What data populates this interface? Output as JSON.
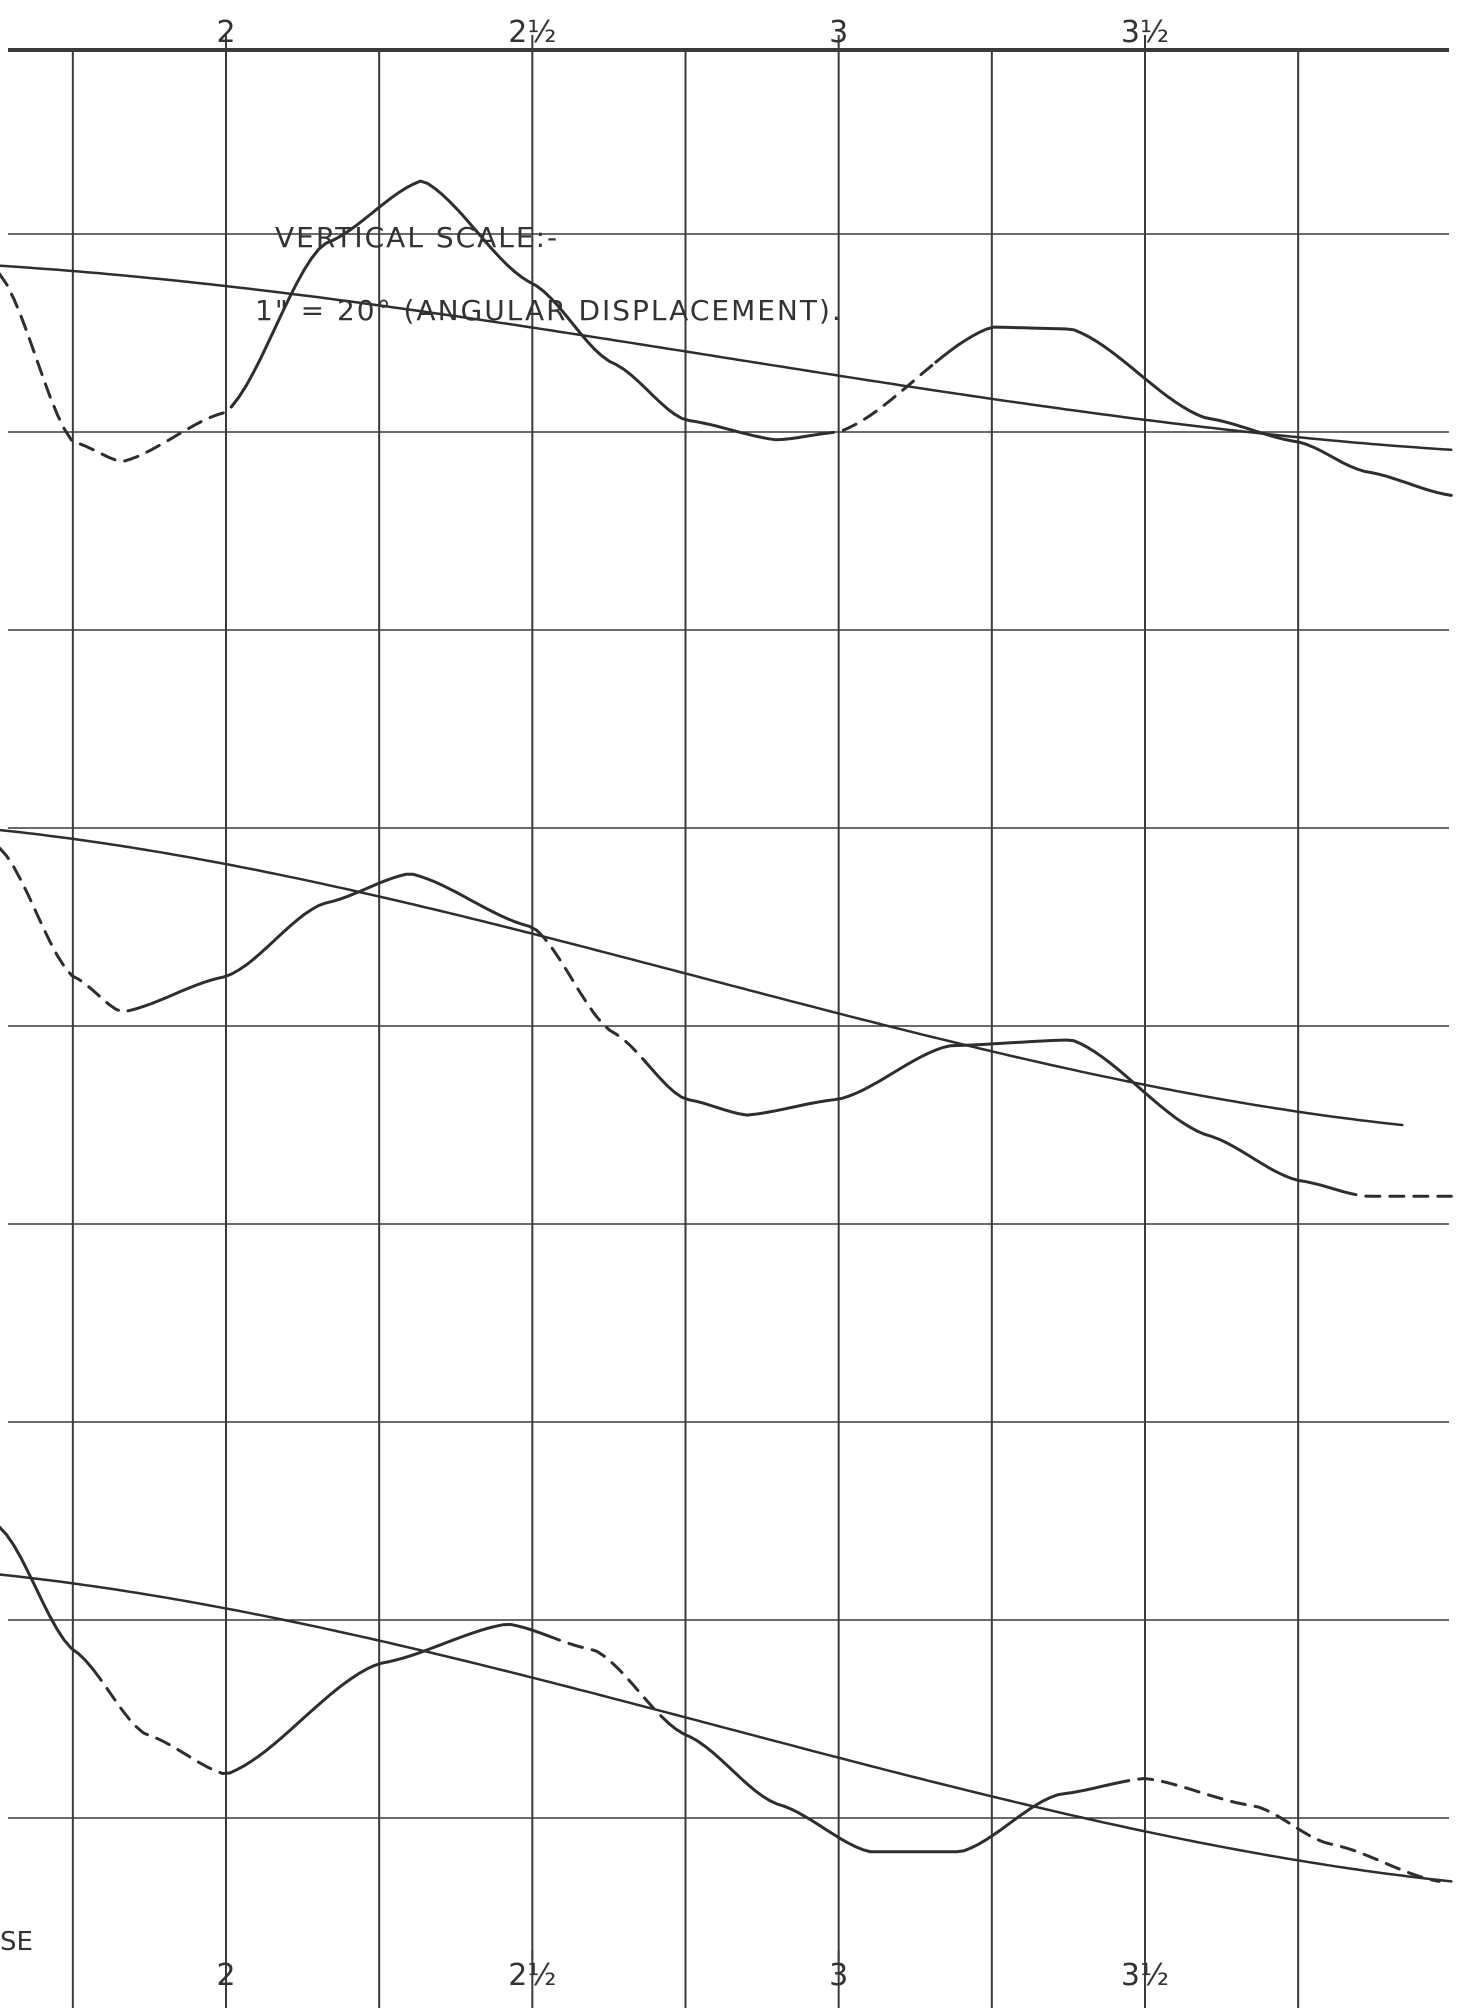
{
  "chart_data": {
    "type": "line",
    "title": "",
    "xlabel": "",
    "ylabel": "",
    "annotation_lines": [
      "VERTICAL SCALE:-",
      "1\" = 20° (ANGULAR DISPLACEMENT)."
    ],
    "bottom_left_label": "SE",
    "x_ticks": [
      {
        "value": 2.0,
        "label": "2"
      },
      {
        "value": 2.5,
        "label": "2½"
      },
      {
        "value": 3.0,
        "label": "3"
      },
      {
        "value": 3.5,
        "label": "3½"
      }
    ],
    "xlim": [
      1.63,
      4.0
    ],
    "ylim": [
      -1.0,
      9.0
    ],
    "grid": true,
    "grid_x": [
      1.75,
      2.0,
      2.25,
      2.5,
      2.75,
      3.0,
      3.25,
      3.5,
      3.75
    ],
    "grid_y": [
      0,
      1,
      2,
      3,
      4,
      5,
      6,
      7,
      8
    ],
    "series": [
      {
        "style": "oscillation",
        "x": [
          1.63,
          1.75,
          1.83,
          2.0,
          2.16,
          2.32,
          2.5,
          2.63,
          2.75,
          2.9,
          3.0,
          3.25,
          3.38,
          3.6,
          3.75,
          3.86,
          4.0
        ],
        "y": [
          7.8,
          6.95,
          6.85,
          7.1,
          7.95,
          8.27,
          7.75,
          7.35,
          7.06,
          6.96,
          7.0,
          7.53,
          7.52,
          7.07,
          6.95,
          6.8,
          6.68
        ],
        "dashed_x_ranges": [
          [
            1.63,
            2.0
          ],
          [
            2.96,
            3.15
          ]
        ]
      },
      {
        "style": "mean_line",
        "x": [
          1.63,
          4.0
        ],
        "y": [
          7.84,
          6.91
        ],
        "dashed_x_ranges": []
      },
      {
        "style": "oscillation",
        "x": [
          1.63,
          1.75,
          1.83,
          2.0,
          2.16,
          2.3,
          2.5,
          2.63,
          2.75,
          2.85,
          3.0,
          3.18,
          3.38,
          3.6,
          3.75,
          3.86,
          4.0
        ],
        "y": [
          4.9,
          4.25,
          4.07,
          4.25,
          4.62,
          4.77,
          4.5,
          3.97,
          3.63,
          3.55,
          3.63,
          3.9,
          3.93,
          3.45,
          3.22,
          3.14,
          3.14
        ],
        "dashed_x_ranges": [
          [
            1.63,
            1.85
          ],
          [
            2.5,
            2.68
          ],
          [
            3.82,
            4.0
          ]
        ]
      },
      {
        "style": "mean_line",
        "x": [
          1.63,
          3.92
        ],
        "y": [
          4.99,
          3.5
        ],
        "dashed_x_ranges": []
      },
      {
        "style": "oscillation",
        "x": [
          1.63,
          1.75,
          1.87,
          2.0,
          2.25,
          2.46,
          2.6,
          2.75,
          2.9,
          3.05,
          3.2,
          3.36,
          3.5,
          3.68,
          3.8,
          3.98
        ],
        "y": [
          1.47,
          0.85,
          0.42,
          0.22,
          0.78,
          0.98,
          0.85,
          0.42,
          0.07,
          -0.17,
          -0.17,
          0.12,
          0.2,
          0.06,
          -0.13,
          -0.32
        ],
        "dashed_x_ranges": [
          [
            1.78,
            2.0
          ],
          [
            2.52,
            2.72
          ],
          [
            3.45,
            3.98
          ]
        ]
      },
      {
        "style": "mean_line",
        "x": [
          1.63,
          4.0
        ],
        "y": [
          1.23,
          -0.32
        ],
        "dashed_x_ranges": []
      }
    ],
    "colors": {
      "ink": "#2e2e2e",
      "grid": "#3a3a3a",
      "paper": "#ffffff"
    }
  }
}
